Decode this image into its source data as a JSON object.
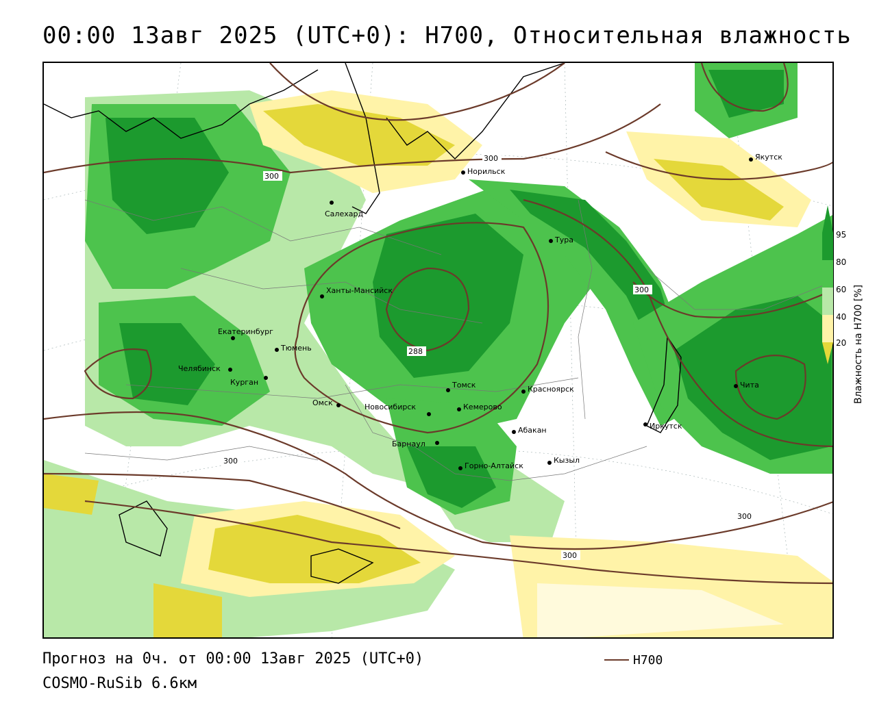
{
  "header": {
    "title": "00:00 13авг 2025 (UTC+0): H700, Относительная влажность"
  },
  "footer": {
    "forecast": "Прогноз на 0ч. от 00:00 13авг 2025 (UTC+0)",
    "model": "COSMO-RuSib 6.6км",
    "legend_label": "H700"
  },
  "colorbar": {
    "title": "Влажность на H700 [%]",
    "ticks": [
      "95",
      "80",
      "60",
      "40",
      "20"
    ],
    "colors": {
      "very_dry": "#e4d83a",
      "dry": "#fff3a8",
      "neutral": "#ffffff",
      "moist": "#b8e8a8",
      "wet": "#4dc34d",
      "very_wet": "#1c9a2e",
      "contour": "#6b3a2a"
    }
  },
  "map": {
    "cities": [
      {
        "name": "Якутск"
      },
      {
        "name": "Норильск"
      },
      {
        "name": "Салехард"
      },
      {
        "name": "Тура"
      },
      {
        "name": "Ханты-Мансийск"
      },
      {
        "name": "Екатеринбург"
      },
      {
        "name": "Тюмень"
      },
      {
        "name": "Челябинск"
      },
      {
        "name": "Курган"
      },
      {
        "name": "Омск"
      },
      {
        "name": "Новосибирск"
      },
      {
        "name": "Томск"
      },
      {
        "name": "Кемерово"
      },
      {
        "name": "Красноярск"
      },
      {
        "name": "Абакан"
      },
      {
        "name": "Барнаул"
      },
      {
        "name": "Горно-Алтайск"
      },
      {
        "name": "Кызыл"
      },
      {
        "name": "Иркутск"
      },
      {
        "name": "Чита"
      }
    ],
    "contour_labels": [
      "300",
      "300",
      "300",
      "288",
      "300",
      "300",
      "300"
    ]
  }
}
